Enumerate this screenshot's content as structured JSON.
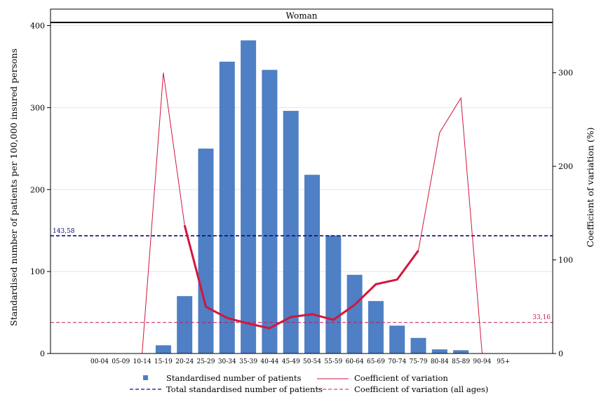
{
  "chart_data": {
    "type": "bar",
    "panel_title": "Woman",
    "categories": [
      "00-04",
      "05-09",
      "10-14",
      "15-19",
      "20-24",
      "25-29",
      "30-34",
      "35-39",
      "40-44",
      "45-49",
      "50-54",
      "55-59",
      "60-64",
      "65-69",
      "70-74",
      "75-79",
      "80-84",
      "85-89",
      "90-94",
      "95+"
    ],
    "ylabel_left": "Standardised number of patients per 100,000 insured persons",
    "ylabel_right": "Coefficient of variation (%)",
    "ylim_left": [
      0,
      403
    ],
    "ylim_right": [
      0,
      353
    ],
    "yticks_left": [
      0,
      100,
      200,
      300,
      400
    ],
    "yticks_right": [
      0,
      100,
      200,
      300
    ],
    "grid": "horizontal",
    "legend_position": "bottom",
    "series": [
      {
        "name": "Standardised number of patients",
        "type": "bar",
        "axis": "left",
        "color": "#4f7fc4",
        "values": [
          0,
          0,
          0,
          10,
          70,
          250,
          356,
          382,
          346,
          296,
          218,
          144,
          96,
          64,
          34,
          19,
          5,
          4,
          0,
          0
        ]
      },
      {
        "name": "Coefficient of variation",
        "type": "line",
        "axis": "right",
        "color": "#d2163c",
        "values": [
          null,
          null,
          0,
          300,
          137,
          50,
          38,
          32,
          27,
          39,
          42,
          36,
          52,
          74,
          79,
          110,
          236,
          273,
          0,
          null
        ],
        "emphasis_range": [
          "20-24",
          "75-79"
        ]
      },
      {
        "name": "Total standardised number of patients",
        "type": "reference-line",
        "axis": "left",
        "color": "#0c0c7a",
        "value": 143.58,
        "label": "143,58"
      },
      {
        "name": "Coefficient of variation (all ages)",
        "type": "reference-line",
        "axis": "right",
        "color": "#c2185b",
        "value": 33.16,
        "label": "33,16"
      }
    ]
  }
}
